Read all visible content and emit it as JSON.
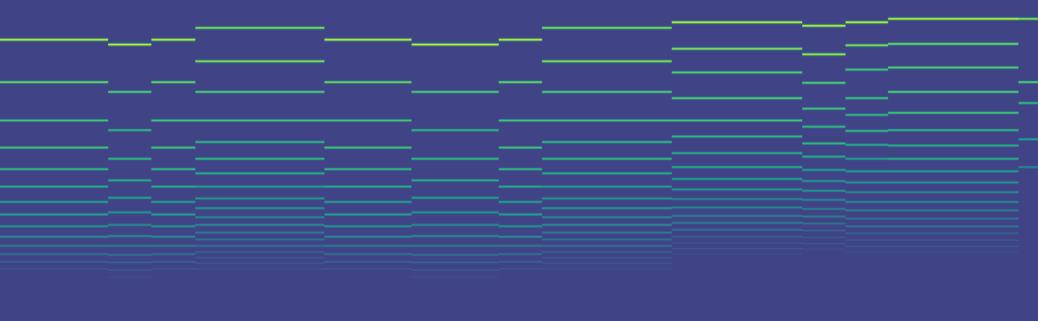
{
  "chart_data": {
    "type": "heatmap",
    "color": "viridis",
    "tick_labels": false,
    "xlim": [
      0,
      1488
    ],
    "ylim": [
      461,
      0
    ],
    "zlim": [
      0,
      1
    ],
    "background": 0.2,
    "segments": [
      {
        "start": 0,
        "end": 155,
        "lines": {
          "y": [
            57,
            118,
            173,
            212,
            243,
            268,
            290,
            308,
            325,
            340,
            353,
            365,
            376,
            386
          ],
          "levels": [
            1.0,
            0.85,
            0.75,
            0.75,
            0.7,
            0.65,
            0.6,
            0.6,
            0.55,
            0.5,
            0.45,
            0.4,
            0.35,
            0.3
          ]
        }
      },
      {
        "start": 155,
        "end": 217,
        "lines": {
          "y": [
            64,
            132,
            187,
            228,
            259,
            284,
            305,
            323,
            339,
            353,
            366,
            377,
            388,
            398
          ],
          "levels": [
            1.0,
            0.8,
            0.7,
            0.7,
            0.65,
            0.6,
            0.55,
            0.5,
            0.5,
            0.45,
            0.4,
            0.35,
            0.3,
            0.25
          ]
        }
      },
      {
        "start": 217,
        "end": 280,
        "lines": {
          "y": [
            57,
            118,
            173,
            212,
            243,
            268,
            290,
            308,
            325,
            340,
            353,
            365,
            376,
            386
          ],
          "levels": [
            1.0,
            0.85,
            0.75,
            0.75,
            0.7,
            0.65,
            0.6,
            0.6,
            0.55,
            0.5,
            0.45,
            0.4,
            0.35,
            0.3
          ]
        }
      },
      {
        "start": 280,
        "end": 465,
        "lines": {
          "y": [
            40,
            88,
            132,
            173,
            204,
            228,
            249,
            268,
            285,
            299,
            312,
            323,
            334,
            344,
            353,
            362,
            370,
            378,
            386,
            393
          ],
          "levels": [
            0.9,
            0.9,
            0.8,
            0.75,
            0.7,
            0.7,
            0.65,
            0.6,
            0.55,
            0.55,
            0.5,
            0.5,
            0.45,
            0.4,
            0.4,
            0.35,
            0.3,
            0.3,
            0.25,
            0.2
          ]
        }
      },
      {
        "start": 465,
        "end": 590,
        "lines": {
          "y": [
            57,
            118,
            173,
            212,
            243,
            268,
            290,
            308,
            325,
            340,
            353,
            365,
            376,
            386
          ],
          "levels": [
            1.0,
            0.85,
            0.75,
            0.75,
            0.7,
            0.65,
            0.6,
            0.6,
            0.55,
            0.5,
            0.45,
            0.4,
            0.35,
            0.3
          ]
        }
      },
      {
        "start": 590,
        "end": 715,
        "lines": {
          "y": [
            64,
            132,
            187,
            228,
            259,
            284,
            305,
            323,
            339,
            353,
            366,
            377,
            388,
            398
          ],
          "levels": [
            1.0,
            0.8,
            0.7,
            0.7,
            0.65,
            0.6,
            0.55,
            0.5,
            0.5,
            0.45,
            0.4,
            0.35,
            0.3,
            0.25
          ]
        }
      },
      {
        "start": 715,
        "end": 777,
        "lines": {
          "y": [
            57,
            118,
            173,
            212,
            243,
            268,
            290,
            308,
            325,
            340,
            353,
            365,
            376,
            386
          ],
          "levels": [
            1.0,
            0.85,
            0.75,
            0.75,
            0.7,
            0.65,
            0.6,
            0.6,
            0.55,
            0.5,
            0.45,
            0.4,
            0.35,
            0.3
          ]
        }
      },
      {
        "start": 777,
        "end": 963,
        "lines": {
          "y": [
            40,
            88,
            132,
            173,
            204,
            228,
            249,
            268,
            285,
            299,
            312,
            323,
            334,
            344,
            353,
            362,
            370,
            378,
            386,
            393
          ],
          "levels": [
            0.9,
            0.9,
            0.8,
            0.75,
            0.7,
            0.7,
            0.65,
            0.6,
            0.55,
            0.55,
            0.5,
            0.5,
            0.45,
            0.4,
            0.4,
            0.35,
            0.3,
            0.3,
            0.25,
            0.2
          ]
        }
      },
      {
        "start": 963,
        "end": 1150,
        "lines": {
          "y": [
            32,
            70,
            104,
            141,
            173,
            196,
            220,
            240,
            257,
            272,
            286,
            298,
            310,
            320,
            330,
            340,
            349,
            357,
            365,
            372
          ],
          "levels": [
            1.0,
            0.9,
            0.8,
            0.8,
            0.75,
            0.7,
            0.65,
            0.65,
            0.6,
            0.55,
            0.5,
            0.5,
            0.45,
            0.45,
            0.4,
            0.35,
            0.3,
            0.3,
            0.25,
            0.2
          ]
        }
      },
      {
        "start": 1150,
        "end": 1212,
        "lines": {
          "y": [
            37,
            78,
            119,
            156,
            182,
            206,
            225,
            244,
            260,
            274,
            287,
            300,
            311,
            321,
            331,
            341,
            350,
            358
          ],
          "levels": [
            1.0,
            0.95,
            0.8,
            0.75,
            0.7,
            0.7,
            0.65,
            0.6,
            0.55,
            0.55,
            0.5,
            0.45,
            0.45,
            0.4,
            0.35,
            0.3,
            0.3,
            0.25
          ]
        }
      },
      {
        "start": 1212,
        "end": 1273,
        "lines": {
          "y": [
            32,
            65,
            100,
            141,
            165,
            188,
            208,
            228,
            246,
            262,
            276,
            290,
            302,
            314,
            325,
            335,
            345,
            354,
            362
          ],
          "levels": [
            1.0,
            0.9,
            0.75,
            0.75,
            0.7,
            0.7,
            0.65,
            0.6,
            0.6,
            0.55,
            0.5,
            0.5,
            0.45,
            0.4,
            0.4,
            0.35,
            0.3,
            0.3,
            0.25
          ]
        }
      },
      {
        "start": 1273,
        "end": 1460,
        "lines": {
          "y": [
            27,
            63,
            97,
            132,
            162,
            187,
            209,
            228,
            246,
            262,
            276,
            290,
            302,
            314,
            325,
            335,
            345,
            354,
            362,
            370
          ],
          "levels": [
            1.0,
            0.85,
            0.8,
            0.8,
            0.75,
            0.7,
            0.65,
            0.65,
            0.6,
            0.55,
            0.5,
            0.5,
            0.45,
            0.4,
            0.4,
            0.35,
            0.3,
            0.3,
            0.25,
            0.2
          ]
        }
      },
      {
        "start": 1460,
        "end": 1488,
        "lines": {
          "y": [
            27,
            118,
            148,
            200,
            240
          ],
          "levels": [
            0.9,
            0.8,
            0.7,
            0.6,
            0.5
          ]
        }
      }
    ]
  }
}
